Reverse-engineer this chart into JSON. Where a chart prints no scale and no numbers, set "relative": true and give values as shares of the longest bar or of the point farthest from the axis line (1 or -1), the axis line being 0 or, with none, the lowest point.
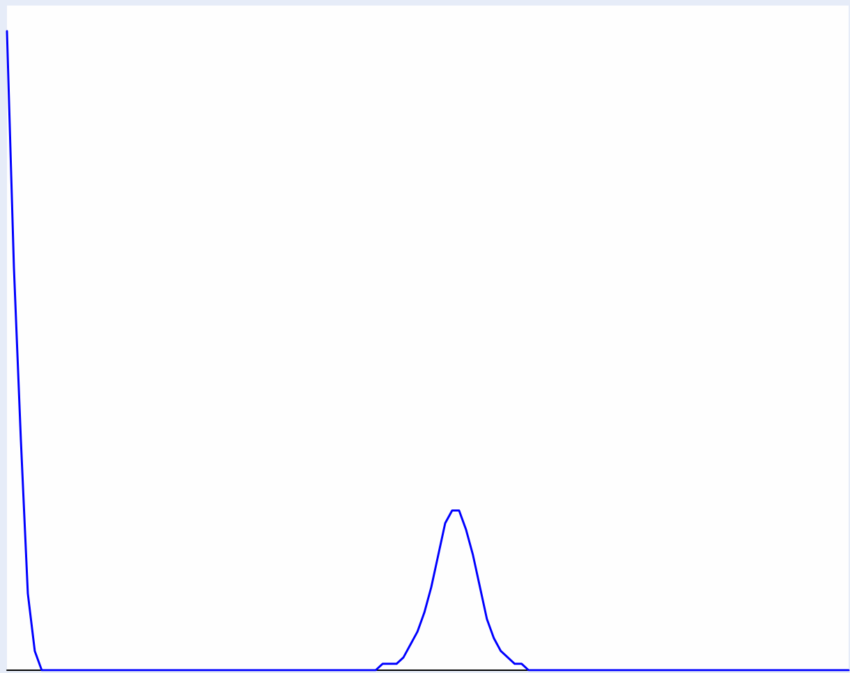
{
  "chart_data": {
    "type": "line",
    "relative": true,
    "tick_labels": false,
    "grid": false,
    "marker": "none",
    "line_style": "solid",
    "categories": [
      null,
      null,
      null,
      null,
      null,
      null,
      null,
      null,
      null,
      null,
      null,
      null,
      null,
      null,
      null,
      null,
      null,
      null,
      null,
      null,
      null,
      null,
      null,
      null,
      null,
      null,
      null,
      null,
      null,
      null,
      null,
      null,
      null,
      null,
      null,
      null,
      null,
      null,
      null,
      null,
      null,
      null,
      null,
      null,
      null,
      null,
      null,
      null,
      null,
      null,
      null,
      null,
      null,
      null,
      null,
      null,
      null,
      null,
      null,
      null,
      null,
      null,
      null,
      null,
      null,
      null,
      null,
      null,
      null,
      null,
      null,
      null,
      null,
      null,
      null,
      null,
      null,
      null,
      null,
      null,
      null,
      null,
      null,
      null,
      null,
      null,
      null,
      null,
      null,
      null,
      null,
      null,
      null,
      null,
      null,
      null,
      null,
      null,
      null,
      null,
      null,
      null,
      null,
      null,
      null,
      null,
      null,
      null,
      null,
      null,
      null,
      null,
      null,
      null,
      null,
      null,
      null,
      null,
      null,
      null,
      null,
      null
    ],
    "series": [
      {
        "color": "#0000ff",
        "values": [
          1.0,
          0.63,
          0.36,
          0.12,
          0.03,
          0,
          0,
          0,
          0,
          0,
          0,
          0,
          0,
          0,
          0,
          0,
          0,
          0,
          0,
          0,
          0,
          0,
          0,
          0,
          0,
          0,
          0,
          0,
          0,
          0,
          0,
          0,
          0,
          0,
          0,
          0,
          0,
          0,
          0,
          0,
          0,
          0,
          0,
          0,
          0,
          0,
          0,
          0,
          0,
          0,
          0,
          0,
          0,
          0,
          0.01,
          0.01,
          0.01,
          0.02,
          0.04,
          0.06,
          0.09,
          0.13,
          0.18,
          0.23,
          0.25,
          0.25,
          0.22,
          0.18,
          0.13,
          0.08,
          0.05,
          0.03,
          0.02,
          0.01,
          0.01,
          0,
          0,
          0,
          0,
          0,
          0,
          0,
          0,
          0,
          0,
          0,
          0,
          0,
          0,
          0,
          0,
          0,
          0,
          0,
          0,
          0,
          0,
          0,
          0,
          0,
          0,
          0,
          0,
          0,
          0,
          0,
          0,
          0,
          0,
          0,
          0,
          0,
          0,
          0,
          0,
          0,
          0,
          0,
          0,
          0,
          0,
          0
        ]
      }
    ]
  }
}
